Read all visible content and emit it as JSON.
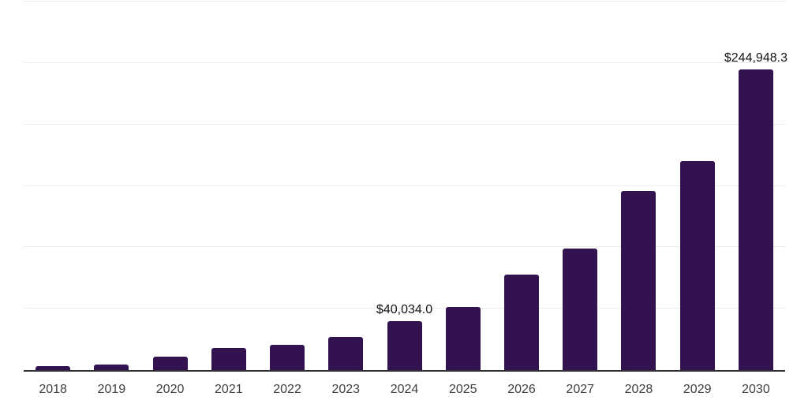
{
  "chart_data": {
    "type": "bar",
    "title": "",
    "xlabel": "",
    "ylabel": "",
    "categories": [
      "2018",
      "2019",
      "2020",
      "2021",
      "2022",
      "2023",
      "2024",
      "2025",
      "2026",
      "2027",
      "2028",
      "2029",
      "2030"
    ],
    "values": [
      3500,
      4600,
      10800,
      17900,
      20700,
      26700,
      40034.0,
      51600,
      77800,
      99000,
      145900,
      170400,
      244948.3
    ],
    "value_labels": [
      {
        "category": "2024",
        "text": "$40,034.0"
      },
      {
        "category": "2030",
        "text": "$244,948.3"
      }
    ],
    "ylim": [
      0,
      300000
    ],
    "gridline_interval": 50000,
    "grid": "horizontal-only",
    "legend": "none",
    "y_tick_labels_shown": false,
    "colors": {
      "bar": "#331250",
      "gridline": "#ededed",
      "axis_line": "#2f2f2f",
      "tick_label": "#3f3f3f",
      "value_label": "#141414",
      "background": "#ffffff"
    }
  }
}
